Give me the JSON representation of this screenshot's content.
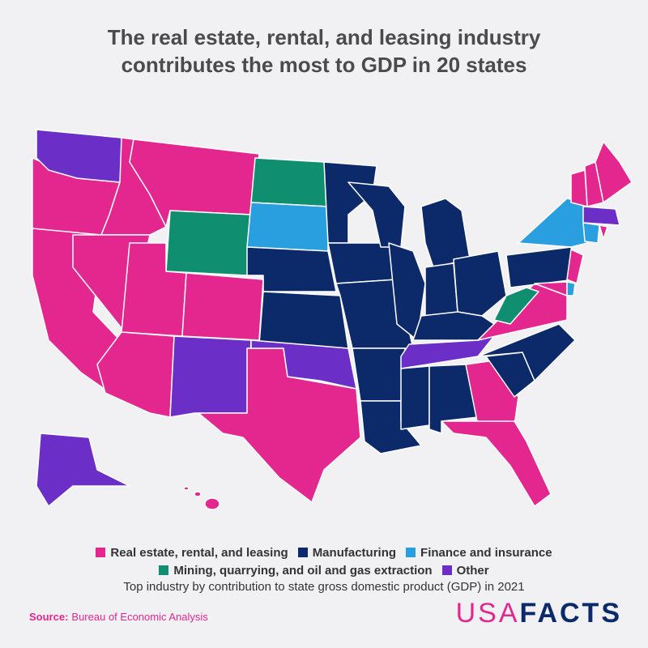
{
  "header": {
    "title": "The real estate, rental, and leasing industry contributes the most to GDP in 20 states"
  },
  "legend": {
    "items": [
      {
        "label": "Real estate, rental, and leasing",
        "color": "#e4268f"
      },
      {
        "label": "Manufacturing",
        "color": "#0c2a6a"
      },
      {
        "label": "Finance and insurance",
        "color": "#2a9fdf"
      },
      {
        "label": "Mining, quarrying, and oil and gas extraction",
        "color": "#0f8f6f"
      },
      {
        "label": "Other",
        "color": "#6b2fc8"
      }
    ],
    "caption": "Top industry by contribution to state gross domestic product (GDP) in 2021"
  },
  "footer": {
    "source_label": "Source:",
    "source": "Bureau of Economic Analysis",
    "logo_left": "USA",
    "logo_right": "FACTS"
  }
}
